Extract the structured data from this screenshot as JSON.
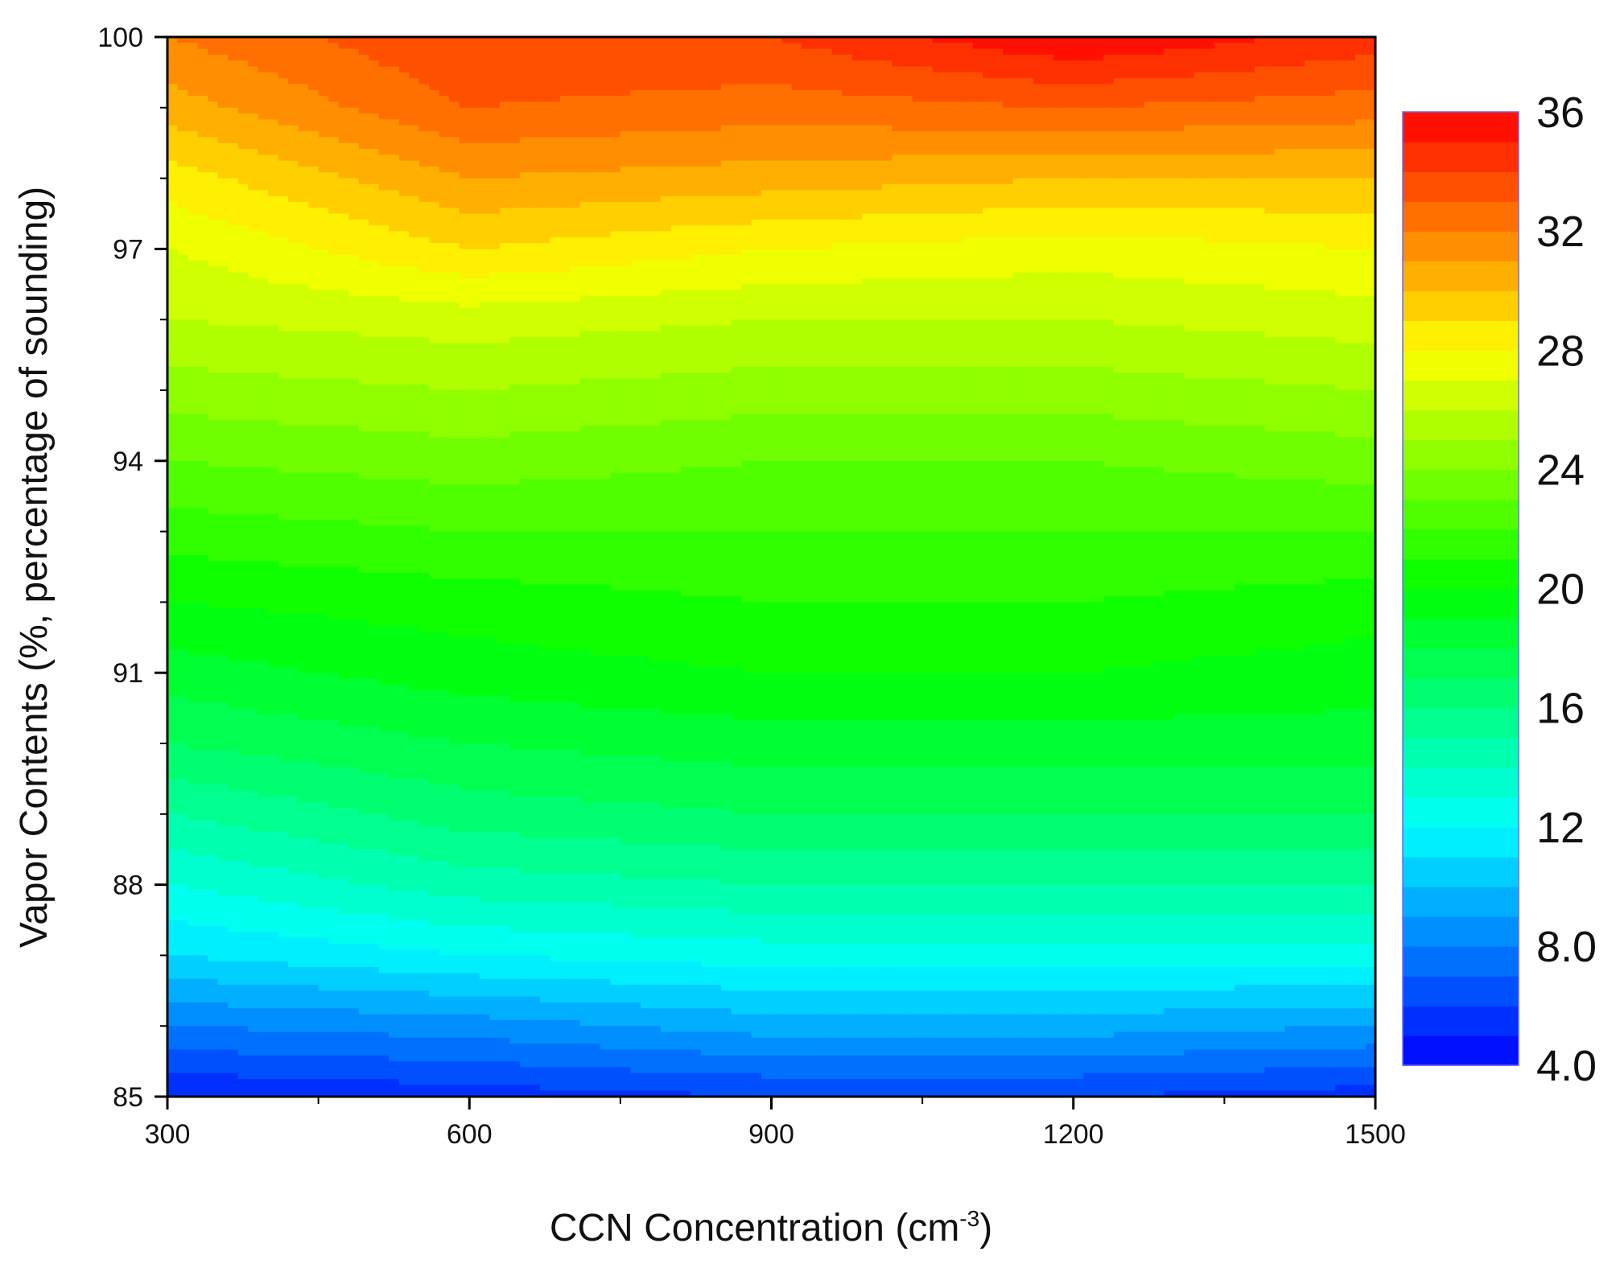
{
  "chart_data": {
    "type": "heatmap",
    "subtype": "filled-contour",
    "title": "",
    "xlabel": "CCN Concentration (cm",
    "xlabel_superscript": "-3",
    "xlabel_close": ")",
    "ylabel": "Vapor Contents (%, percentage of sounding)",
    "xlim": [
      300,
      1500
    ],
    "ylim": [
      85,
      100
    ],
    "x_ticks": [
      300,
      600,
      900,
      1200,
      1500
    ],
    "x_tick_labels": [
      "300",
      "600",
      "900",
      "1200",
      "1500"
    ],
    "y_ticks": [
      85,
      88,
      91,
      94,
      97,
      100
    ],
    "y_tick_labels": [
      "85",
      "88",
      "91",
      "94",
      "97",
      "100"
    ],
    "colorbar": {
      "range": [
        4.0,
        36
      ],
      "ticks": [
        4.0,
        8.0,
        12,
        16,
        20,
        24,
        28,
        32,
        36
      ],
      "tick_labels": [
        "4.0",
        "8.0",
        "12",
        "16",
        "20",
        "24",
        "28",
        "32",
        "36"
      ],
      "levels": 32,
      "colormap": "rainbow (blue-cyan-green-yellow-red)"
    },
    "x": [
      300,
      600,
      900,
      1200,
      1500
    ],
    "y_reference_rows": [
      85,
      88,
      91,
      94,
      97,
      100
    ],
    "z_profiles_by_x": [
      {
        "x": 300,
        "y": [
          85,
          86,
          87,
          88,
          89,
          90,
          91,
          92,
          93,
          94,
          95,
          96,
          97,
          98,
          99,
          100
        ],
        "z": [
          5,
          8,
          11,
          13,
          15,
          17,
          18.5,
          20,
          21.5,
          23,
          24.5,
          26,
          27,
          28.5,
          30.5,
          32
        ]
      },
      {
        "x": 600,
        "y": [
          85,
          86,
          87,
          88,
          89,
          90,
          91,
          92,
          93,
          94,
          95,
          96,
          97,
          98,
          99,
          100
        ],
        "z": [
          5.5,
          8.5,
          12,
          14.5,
          16.5,
          18,
          19.5,
          20.5,
          22,
          23.5,
          25,
          26.5,
          29,
          31,
          33,
          34
        ]
      },
      {
        "x": 900,
        "y": [
          85,
          86,
          87,
          88,
          89,
          90,
          91,
          92,
          93,
          94,
          95,
          96,
          97,
          98,
          99,
          100
        ],
        "z": [
          6,
          9.5,
          12.5,
          15,
          17,
          18.5,
          20,
          21,
          22,
          23,
          24.5,
          26,
          28,
          30.5,
          32.5,
          34
        ]
      },
      {
        "x": 1200,
        "y": [
          85,
          86,
          87,
          88,
          89,
          90,
          91,
          92,
          93,
          94,
          95,
          96,
          97,
          98,
          99,
          100
        ],
        "z": [
          6,
          9.5,
          12.5,
          15,
          17,
          18.5,
          20,
          21,
          22,
          23,
          24.5,
          26,
          27.5,
          30,
          33,
          36
        ]
      },
      {
        "x": 1500,
        "y": [
          85,
          86,
          87,
          88,
          89,
          90,
          91,
          92,
          93,
          94,
          95,
          96,
          97,
          98,
          99,
          100
        ],
        "z": [
          5.5,
          9,
          12.5,
          15,
          17,
          18.5,
          19.5,
          20.5,
          22,
          23.5,
          25,
          26.5,
          28,
          30,
          32.5,
          34.5
        ]
      }
    ]
  }
}
